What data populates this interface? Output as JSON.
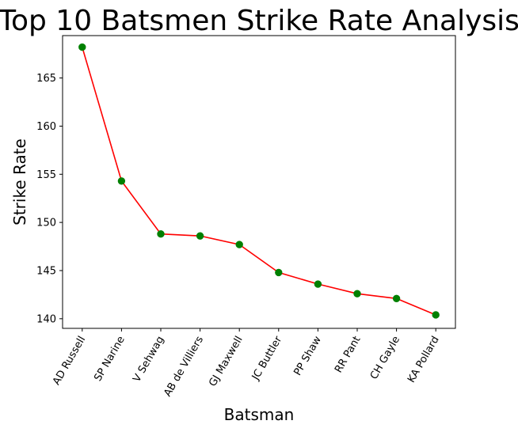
{
  "chart_data": {
    "type": "line",
    "title": "Top 10 Batsmen Strike Rate Analysis",
    "xlabel": "Batsman",
    "ylabel": "Strike Rate",
    "categories": [
      "AD Russell",
      "SP Narine",
      "V Sehwag",
      "AB de Villiers",
      "GJ Maxwell",
      "JC Buttler",
      "PP Shaw",
      "RR Pant",
      "CH Gayle",
      "KA Pollard"
    ],
    "series": [
      {
        "values": [
          168.2,
          154.3,
          148.8,
          148.6,
          147.7,
          144.8,
          143.6,
          142.6,
          142.1,
          140.4
        ],
        "line_color": "#ff0000",
        "marker_color": "#008000"
      }
    ],
    "ylim": [
      139.0,
      169.4
    ],
    "yticks": [
      140,
      145,
      150,
      155,
      160,
      165
    ],
    "grid": false,
    "legend": "none"
  }
}
